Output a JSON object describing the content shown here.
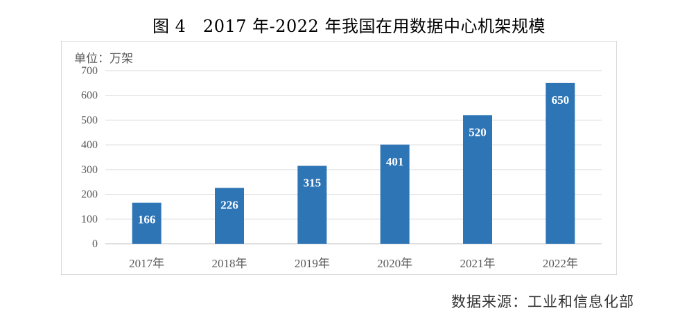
{
  "chart_data": {
    "type": "bar",
    "title": "图 4　2017 年-2022 年我国在用数据中心机架规模",
    "unit_label": "单位：万架",
    "categories": [
      "2017年",
      "2018年",
      "2019年",
      "2020年",
      "2021年",
      "2022年"
    ],
    "values": [
      166,
      226,
      315,
      401,
      520,
      650
    ],
    "data_labels": [
      "166",
      "226",
      "315",
      "401",
      "520",
      "650"
    ],
    "ylim": [
      0,
      700
    ],
    "yticks": [
      "0",
      "100",
      "200",
      "300",
      "400",
      "500",
      "600",
      "700"
    ],
    "grid": true,
    "bar_color": "#2e75b6"
  },
  "source": "数据来源：工业和信息化部"
}
